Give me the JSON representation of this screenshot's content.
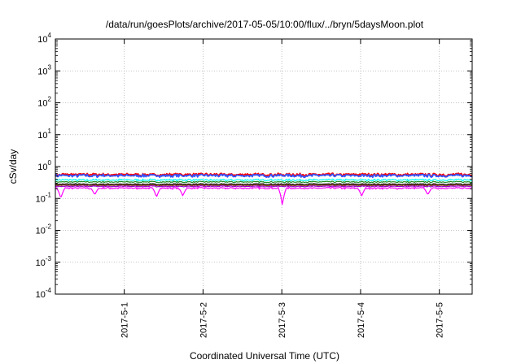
{
  "chart_data": {
    "type": "line",
    "title": "/data/run/goesPlots/archive/2017-05-05/10:00/flux/../bryn/5daysMoon.plot",
    "xlabel": "Coordinated Universal Time (UTC)",
    "ylabel": "cSv/day",
    "yscale": "log",
    "ylim": [
      0.0001,
      10000
    ],
    "xlim": [
      "2017-04-30T03:00",
      "2017-05-05T10:00"
    ],
    "grid": true,
    "legend": "none",
    "x_ticks": [
      {
        "label": "2017-5-1",
        "value": "2017-05-01"
      },
      {
        "label": "2017-5-2",
        "value": "2017-05-02"
      },
      {
        "label": "2017-5-3",
        "value": "2017-05-03"
      },
      {
        "label": "2017-5-4",
        "value": "2017-05-04"
      },
      {
        "label": "2017-5-5",
        "value": "2017-05-05"
      }
    ],
    "y_ticks": [
      {
        "base": "10",
        "exp": "-4",
        "value": 0.0001
      },
      {
        "base": "10",
        "exp": "-3",
        "value": 0.001
      },
      {
        "base": "10",
        "exp": "-2",
        "value": 0.01
      },
      {
        "base": "10",
        "exp": "-1",
        "value": 0.1
      },
      {
        "base": "10",
        "exp": "0",
        "value": 1
      },
      {
        "base": "10",
        "exp": "1",
        "value": 10
      },
      {
        "base": "10",
        "exp": "2",
        "value": 100
      },
      {
        "base": "10",
        "exp": "3",
        "value": 1000
      },
      {
        "base": "10",
        "exp": "4",
        "value": 10000
      }
    ],
    "series": [
      {
        "color": "#ff0000",
        "base": 0.56,
        "jitter": 0.12,
        "dips": []
      },
      {
        "color": "#3355ff",
        "base": 0.52,
        "jitter": 0.12,
        "dips": []
      },
      {
        "color": "#00ffff",
        "base": 0.38,
        "jitter": 0.08,
        "dips": []
      },
      {
        "color": "#228b22",
        "base": 0.33,
        "jitter": 0.06,
        "dips": []
      },
      {
        "color": "#000000",
        "base": 0.28,
        "jitter": 0.05,
        "dips": []
      },
      {
        "color": "#8b4513",
        "base": 0.26,
        "jitter": 0.05,
        "dips": []
      },
      {
        "color": "#9900cc",
        "base": 0.24,
        "jitter": 0.05,
        "dips": []
      },
      {
        "color": "#ff00ff",
        "base": 0.21,
        "jitter": 0.08,
        "dips": [
          {
            "x": "2017-04-30T04:40",
            "value": 0.1
          },
          {
            "x": "2017-04-30T15:00",
            "value": 0.13
          },
          {
            "x": "2017-05-01T09:50",
            "value": 0.11
          },
          {
            "x": "2017-05-01T17:50",
            "value": 0.12
          },
          {
            "x": "2017-05-03T00:10",
            "value": 0.057
          },
          {
            "x": "2017-05-04T00:20",
            "value": 0.12
          },
          {
            "x": "2017-05-04T20:30",
            "value": 0.13
          }
        ]
      }
    ]
  }
}
